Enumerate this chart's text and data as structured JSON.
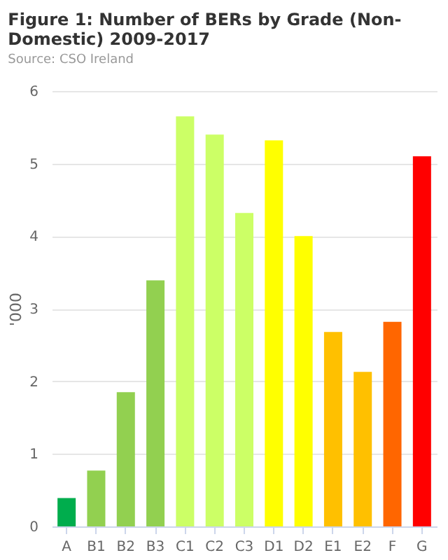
{
  "chart_data": {
    "type": "bar",
    "title": [
      "Figure 1: Number of BERs by Grade (Non-",
      "Domestic) 2009-2017"
    ],
    "ylabel": "'000",
    "categories": [
      "A",
      "B1",
      "B2",
      "B3",
      "C1",
      "C2",
      "C3",
      "D1",
      "D2",
      "E1",
      "E2",
      "F",
      "G"
    ],
    "values": [
      0.39,
      0.77,
      1.85,
      3.39,
      5.65,
      5.4,
      4.32,
      5.32,
      4.0,
      2.68,
      2.13,
      2.82,
      5.1
    ],
    "colors": [
      "#00ad4d",
      "#92d050",
      "#92d050",
      "#92d050",
      "#ccff66",
      "#ccff66",
      "#ccff66",
      "#ffff00",
      "#ffff00",
      "#ffc000",
      "#ffc000",
      "#ff6600",
      "#ff0000"
    ],
    "ylim": [
      0,
      6
    ],
    "yticks": [
      0,
      1,
      2,
      3,
      4,
      5,
      6
    ],
    "grid": "y",
    "annotations": [
      "Source: CSO Ireland"
    ]
  }
}
